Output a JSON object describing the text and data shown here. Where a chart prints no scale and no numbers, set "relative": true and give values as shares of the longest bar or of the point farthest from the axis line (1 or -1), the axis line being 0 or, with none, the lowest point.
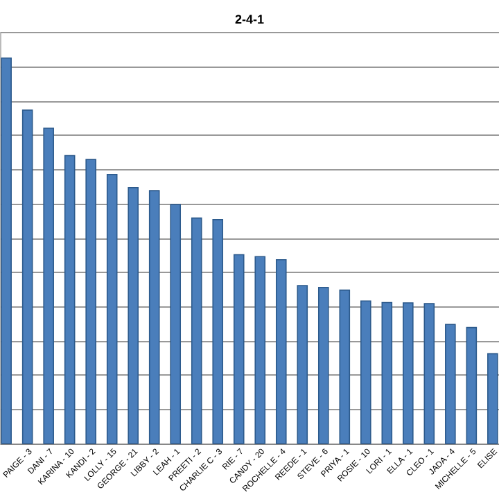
{
  "chart_data": {
    "type": "bar",
    "title": "2-4-1",
    "relative": true,
    "grid": "y",
    "legend": false,
    "categories": [
      null,
      "PAIGE - 3",
      "DANI - 7",
      "KARINA - 10",
      "KANDI - 2",
      "LOLLY - 15",
      "GEORGE - 21",
      "LIBBY - 2",
      "LEAH - 1",
      "PREETI - 2",
      "CHARLIE C - 3",
      "RIE - 7",
      "CANDY - 20",
      "ROCHELLE - 4",
      "REEDE - 1",
      "STEVE - 6",
      "PRIYA - 1",
      "ROSIE - 10",
      "LORI - 1",
      "ELLA - 1",
      "CLEO - 1",
      "JADA - 4",
      "MICHELLE - 5",
      "ELISE"
    ],
    "series": [
      {
        "color": "#4a7ebb",
        "values": [
          1,
          0.865,
          0.818,
          0.747,
          0.737,
          0.698,
          0.664,
          0.656,
          0.62,
          0.585,
          0.581,
          0.49,
          0.485,
          0.477,
          0.41,
          0.405,
          0.398,
          0.37,
          0.366,
          0.365,
          0.363,
          0.309,
          0.301,
          0.233
        ]
      }
    ]
  }
}
